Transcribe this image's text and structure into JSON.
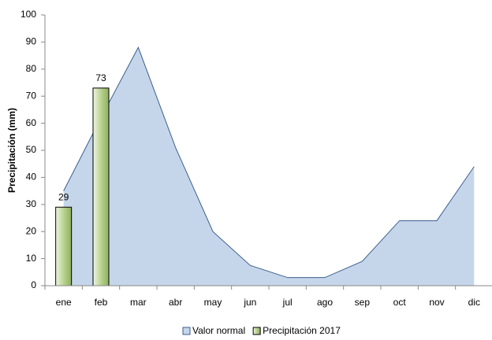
{
  "chart_data": {
    "type": "combo",
    "y_label": "Precipitación (mm)",
    "categories": [
      "ene",
      "feb",
      "mar",
      "abr",
      "may",
      "jun",
      "jul",
      "ago",
      "sep",
      "oct",
      "nov",
      "dic"
    ],
    "series": [
      {
        "name": "Valor normal",
        "type": "area",
        "color": "#c6d6ea",
        "values": [
          35,
          62,
          88,
          51,
          20,
          7.5,
          3,
          3,
          9,
          24,
          24,
          44
        ]
      },
      {
        "name": "Precipitación 2017",
        "type": "bar",
        "color": "#b5cf8a",
        "data_labels": true,
        "values": [
          29,
          73,
          null,
          null,
          null,
          null,
          null,
          null,
          null,
          null,
          null,
          null
        ]
      }
    ],
    "ylim": [
      0,
      100
    ],
    "yticks": [
      0,
      10,
      20,
      30,
      40,
      50,
      60,
      70,
      80,
      90,
      100
    ],
    "grid": false,
    "legend": "bottom"
  }
}
